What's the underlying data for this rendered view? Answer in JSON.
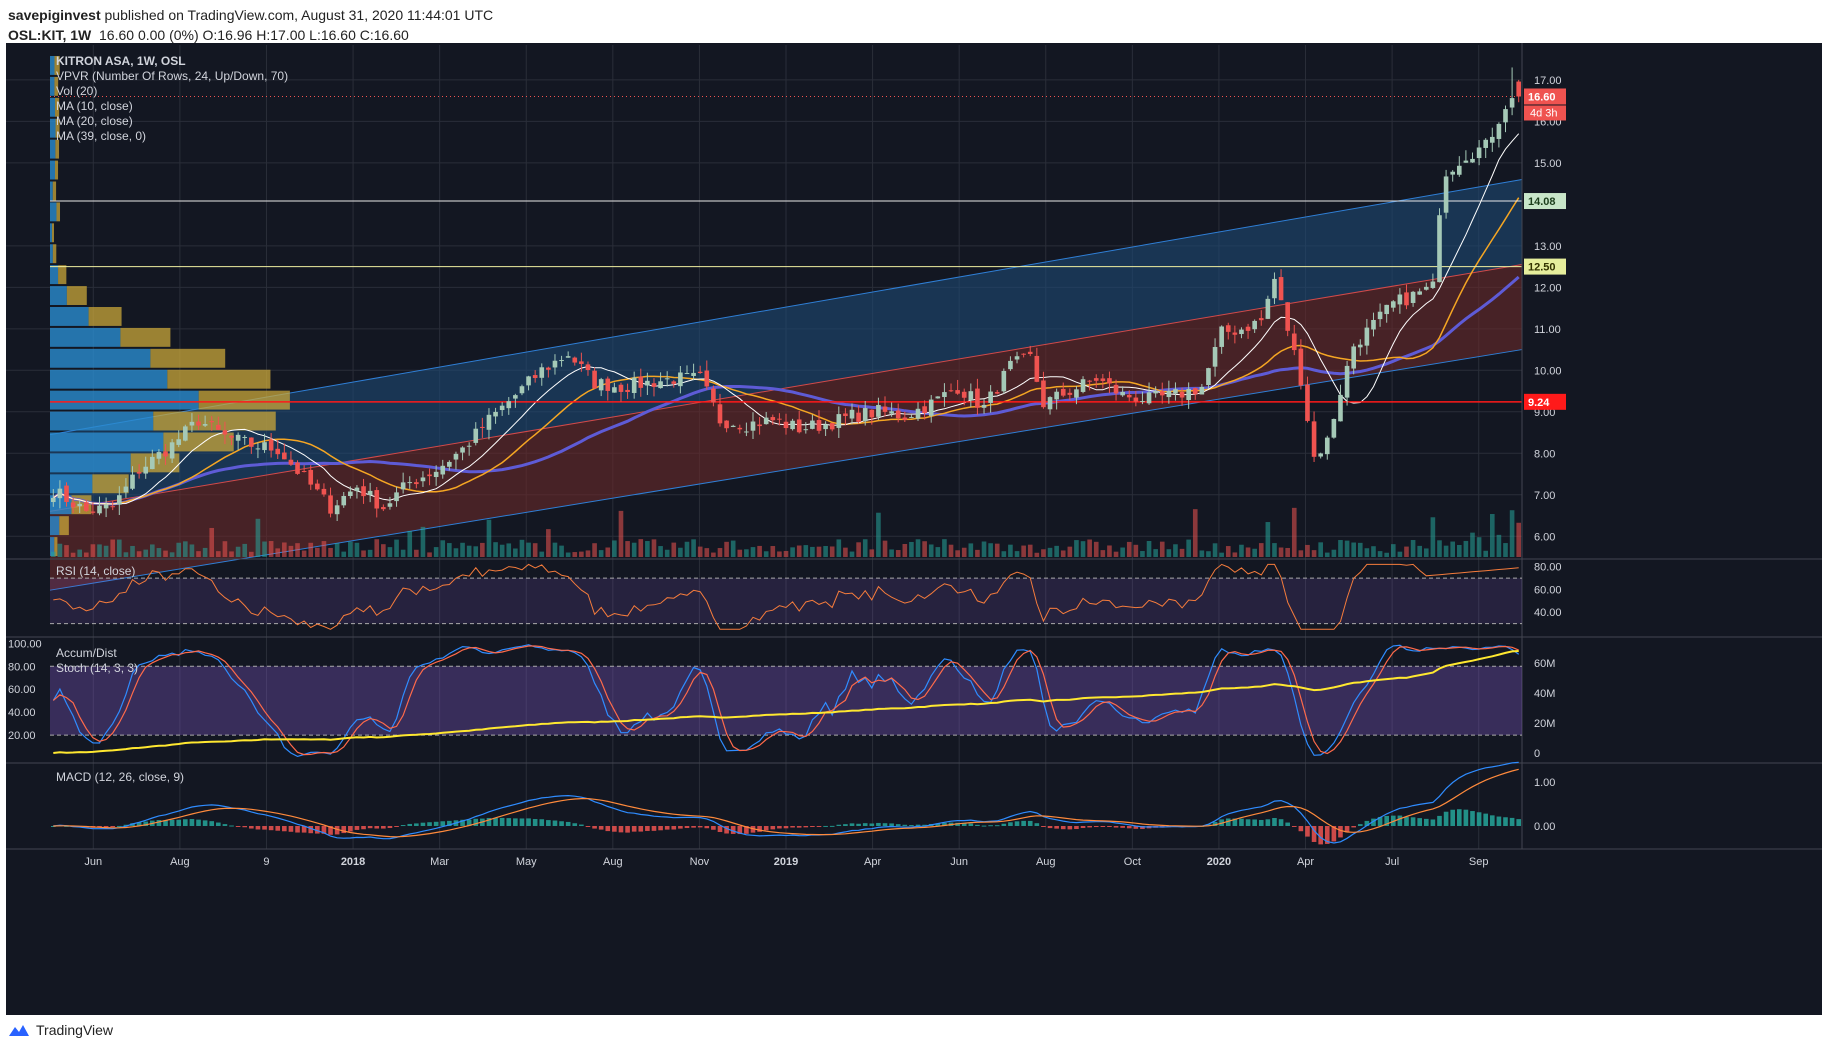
{
  "header": {
    "publisher": "savepiginvest",
    "published_text": " published on TradingView.com, August 31, 2020 11:44:01 UTC",
    "symbol": "OSL:KIT, 1W",
    "ohlc_text": "16.60 0.00 (0%) O:16.96 H:17.00 L:16.60 C:16.60"
  },
  "footer": {
    "brand": "TradingView"
  },
  "legend": {
    "main": [
      "KITRON ASA, 1W, OSL",
      "VPVR (Number Of Rows, 24, Up/Down, 70)",
      "Vol (20)",
      "MA (10, close)",
      "MA (20, close)",
      "MA (39, close, 0)"
    ],
    "rsi": "RSI (14, close)",
    "accum": "Accum/Dist",
    "stoch": "Stoch (14, 3, 3)",
    "macd": "MACD (12, 26, close, 9)"
  },
  "colors": {
    "background": "#131722",
    "up": "#a5c9b7",
    "down": "#ef5350",
    "ma10": "#ffffff",
    "ma20": "#f5a623",
    "ma39": "#5e5bd6",
    "channel_upper": "#1e4a75",
    "channel_lower": "#6a2a2a",
    "hline_red": "#ff1a1a",
    "hline_white": "#e8e8e8",
    "hline_yellow": "#f0f0a0",
    "rsi_line": "#f57c3c",
    "stoch_k": "#2f8cff",
    "stoch_d": "#ff6a4a",
    "accum_line": "#ffe830",
    "macd_line": "#2f8cff",
    "signal_line": "#ff8a3c"
  },
  "badges": {
    "last": "16.60",
    "countdown": "4d 3h",
    "level_a": "14.08",
    "level_b": "12.50",
    "level_c": "9.24"
  },
  "chart_data": {
    "type": "candlestick",
    "symbol": "OSL:KIT",
    "interval": "1W",
    "x_tick_labels": [
      "Jun",
      "Aug",
      "9",
      "2018",
      "Mar",
      "May",
      "Aug",
      "Nov",
      "2019",
      "Apr",
      "Jun",
      "Aug",
      "Oct",
      "2020",
      "Apr",
      "Jul",
      "Sep"
    ],
    "price_axis_ticks": [
      "17.00",
      "16.00",
      "15.00",
      "13.00",
      "12.00",
      "11.00",
      "10.00",
      "9.00",
      "8.00",
      "7.00",
      "6.00"
    ],
    "price_ylim": [
      5.5,
      17.6
    ],
    "horizontal_levels": [
      14.08,
      12.5,
      9.24
    ],
    "last_price": 16.6,
    "price_anchor_points": [
      [
        0,
        7.1
      ],
      [
        5,
        6.6
      ],
      [
        9,
        6.7
      ],
      [
        13,
        7.6
      ],
      [
        18,
        8.2
      ],
      [
        22,
        8.8
      ],
      [
        26,
        8.4
      ],
      [
        30,
        8.2
      ],
      [
        34,
        8.1
      ],
      [
        38,
        7.4
      ],
      [
        42,
        6.7
      ],
      [
        46,
        7.2
      ],
      [
        50,
        6.7
      ],
      [
        54,
        7.3
      ],
      [
        58,
        7.6
      ],
      [
        62,
        8.1
      ],
      [
        66,
        8.8
      ],
      [
        70,
        9.4
      ],
      [
        74,
        10.0
      ],
      [
        78,
        10.4
      ],
      [
        82,
        9.7
      ],
      [
        86,
        9.6
      ],
      [
        90,
        9.7
      ],
      [
        94,
        9.8
      ],
      [
        98,
        9.8
      ],
      [
        101,
        8.8
      ],
      [
        105,
        8.7
      ],
      [
        109,
        8.8
      ],
      [
        113,
        8.6
      ],
      [
        117,
        8.7
      ],
      [
        121,
        8.9
      ],
      [
        125,
        9.0
      ],
      [
        129,
        8.9
      ],
      [
        133,
        9.2
      ],
      [
        137,
        9.6
      ],
      [
        141,
        9.1
      ],
      [
        145,
        10.1
      ],
      [
        148,
        10.3
      ],
      [
        150,
        9.2
      ],
      [
        154,
        9.5
      ],
      [
        158,
        9.8
      ],
      [
        162,
        9.4
      ],
      [
        166,
        9.3
      ],
      [
        170,
        9.4
      ],
      [
        174,
        9.6
      ],
      [
        177,
        10.9
      ],
      [
        180,
        11.0
      ],
      [
        183,
        11.2
      ],
      [
        185,
        12.2
      ],
      [
        187,
        11.0
      ],
      [
        189,
        9.8
      ],
      [
        191,
        7.9
      ],
      [
        193,
        8.3
      ],
      [
        195,
        9.5
      ],
      [
        197,
        10.6
      ],
      [
        200,
        11.1
      ],
      [
        203,
        11.6
      ],
      [
        206,
        11.8
      ],
      [
        209,
        12.0
      ],
      [
        210,
        13.9
      ],
      [
        211,
        14.8
      ],
      [
        214,
        15.2
      ],
      [
        217,
        15.4
      ],
      [
        220,
        16.4
      ],
      [
        222,
        16.6
      ]
    ],
    "weeks": 223,
    "rsi": {
      "levels": [
        70,
        30
      ],
      "axis_ticks": [
        "80.00",
        "60.00",
        "40.00"
      ],
      "ylim": [
        20,
        85
      ]
    },
    "stoch": {
      "levels": [
        80,
        20
      ],
      "axis_ticks": [
        "100.00",
        "80.00",
        "60.00",
        "40.00",
        "20.00"
      ],
      "ylim": [
        0,
        100
      ]
    },
    "accum_dist": {
      "axis_ticks": [
        "60M",
        "40M",
        "20M",
        "0"
      ]
    },
    "macd": {
      "axis_ticks": [
        "1.00",
        "0.00"
      ],
      "last_macd": 1.58,
      "last_signal": 1.28
    },
    "vpvr": {
      "rows": 24,
      "poc_price": 9.24
    }
  }
}
